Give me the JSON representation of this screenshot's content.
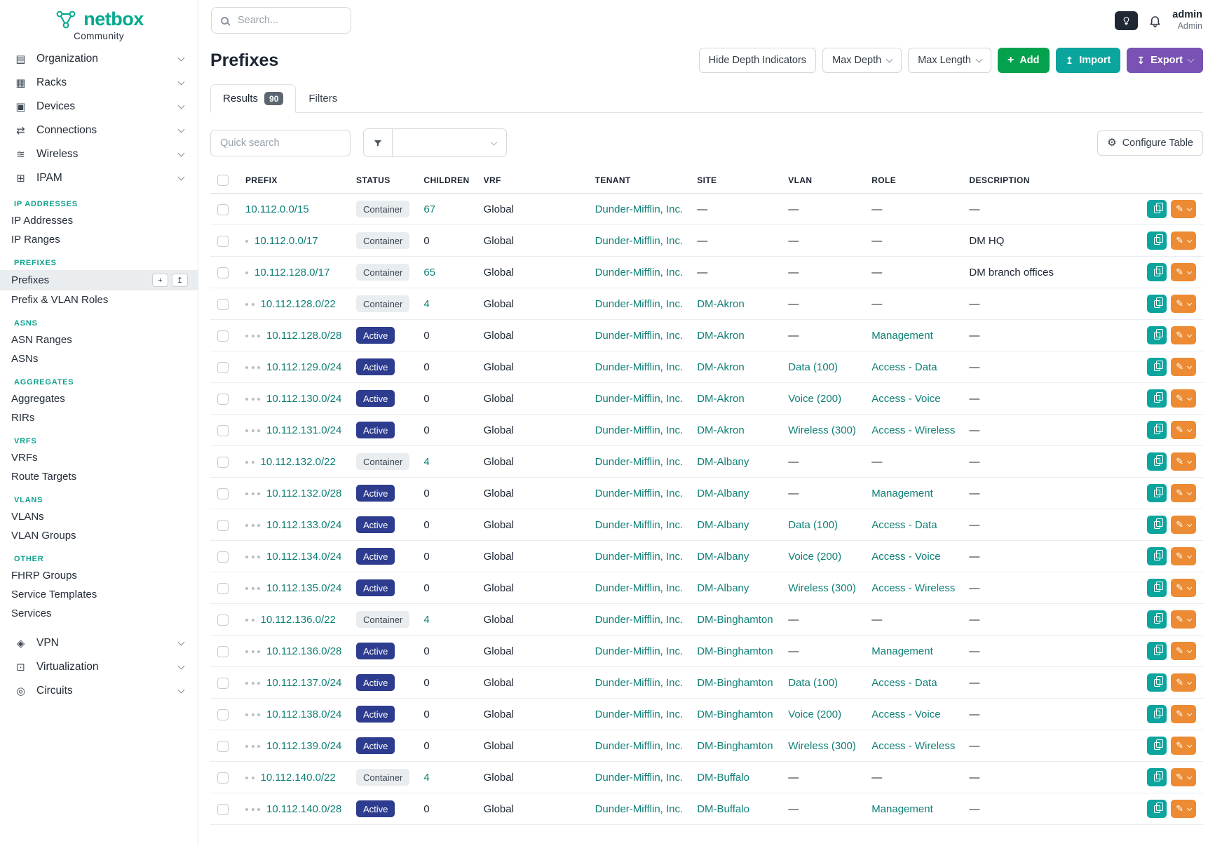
{
  "brand": {
    "name": "netbox",
    "subtitle": "Community"
  },
  "topbar": {
    "search_placeholder": "Search...",
    "username": "admin",
    "user_role": "Admin"
  },
  "sidebar": {
    "top_nav": [
      {
        "label": "Organization",
        "icon": "organization"
      },
      {
        "label": "Racks",
        "icon": "racks"
      },
      {
        "label": "Devices",
        "icon": "devices"
      },
      {
        "label": "Connections",
        "icon": "connections"
      },
      {
        "label": "Wireless",
        "icon": "wireless"
      },
      {
        "label": "IPAM",
        "icon": "ipam"
      }
    ],
    "sections": [
      {
        "header": "IP ADDRESSES",
        "items": [
          {
            "label": "IP Addresses"
          },
          {
            "label": "IP Ranges"
          }
        ]
      },
      {
        "header": "PREFIXES",
        "items": [
          {
            "label": "Prefixes",
            "active": true
          },
          {
            "label": "Prefix & VLAN Roles"
          }
        ]
      },
      {
        "header": "ASNS",
        "items": [
          {
            "label": "ASN Ranges"
          },
          {
            "label": "ASNs"
          }
        ]
      },
      {
        "header": "AGGREGATES",
        "items": [
          {
            "label": "Aggregates"
          },
          {
            "label": "RIRs"
          }
        ]
      },
      {
        "header": "VRFS",
        "items": [
          {
            "label": "VRFs"
          },
          {
            "label": "Route Targets"
          }
        ]
      },
      {
        "header": "VLANS",
        "items": [
          {
            "label": "VLANs"
          },
          {
            "label": "VLAN Groups"
          }
        ]
      },
      {
        "header": "OTHER",
        "items": [
          {
            "label": "FHRP Groups"
          },
          {
            "label": "Service Templates"
          },
          {
            "label": "Services"
          }
        ]
      }
    ],
    "bottom_nav": [
      {
        "label": "VPN",
        "icon": "vpn"
      },
      {
        "label": "Virtualization",
        "icon": "virtualization"
      },
      {
        "label": "Circuits",
        "icon": "circuits"
      }
    ],
    "icons": {
      "organization": "▤",
      "racks": "▦",
      "devices": "▣",
      "connections": "⇄",
      "wireless": "≋",
      "ipam": "⊞",
      "vpn": "◈",
      "virtualization": "⊡",
      "circuits": "◎"
    }
  },
  "page": {
    "title": "Prefixes",
    "hide_depth_label": "Hide Depth Indicators",
    "max_depth_label": "Max Depth",
    "max_length_label": "Max Length",
    "add_label": "Add",
    "import_label": "Import",
    "export_label": "Export",
    "tabs": [
      {
        "label": "Results",
        "badge": "90"
      },
      {
        "label": "Filters"
      }
    ],
    "quick_search_placeholder": "Quick search",
    "configure_table_label": "Configure Table"
  },
  "table": {
    "columns": [
      "PREFIX",
      "STATUS",
      "CHILDREN",
      "VRF",
      "TENANT",
      "SITE",
      "VLAN",
      "ROLE",
      "DESCRIPTION"
    ],
    "rows": [
      {
        "depth": 0,
        "prefix": "10.112.0.0/15",
        "status": "Container",
        "children": "67",
        "vrf": "Global",
        "tenant": "Dunder-Mifflin, Inc.",
        "site": "—",
        "vlan": "—",
        "role": "—",
        "description": "—"
      },
      {
        "depth": 1,
        "prefix": "10.112.0.0/17",
        "status": "Container",
        "children": "0",
        "vrf": "Global",
        "tenant": "Dunder-Mifflin, Inc.",
        "site": "—",
        "vlan": "—",
        "role": "—",
        "description": "DM HQ"
      },
      {
        "depth": 1,
        "prefix": "10.112.128.0/17",
        "status": "Container",
        "children": "65",
        "vrf": "Global",
        "tenant": "Dunder-Mifflin, Inc.",
        "site": "—",
        "vlan": "—",
        "role": "—",
        "description": "DM branch offices"
      },
      {
        "depth": 2,
        "prefix": "10.112.128.0/22",
        "status": "Container",
        "children": "4",
        "vrf": "Global",
        "tenant": "Dunder-Mifflin, Inc.",
        "site": "DM-Akron",
        "vlan": "—",
        "role": "—",
        "description": "—"
      },
      {
        "depth": 3,
        "prefix": "10.112.128.0/28",
        "status": "Active",
        "children": "0",
        "vrf": "Global",
        "tenant": "Dunder-Mifflin, Inc.",
        "site": "DM-Akron",
        "vlan": "—",
        "role": "Management",
        "description": "—"
      },
      {
        "depth": 3,
        "prefix": "10.112.129.0/24",
        "status": "Active",
        "children": "0",
        "vrf": "Global",
        "tenant": "Dunder-Mifflin, Inc.",
        "site": "DM-Akron",
        "vlan": "Data (100)",
        "role": "Access - Data",
        "description": "—"
      },
      {
        "depth": 3,
        "prefix": "10.112.130.0/24",
        "status": "Active",
        "children": "0",
        "vrf": "Global",
        "tenant": "Dunder-Mifflin, Inc.",
        "site": "DM-Akron",
        "vlan": "Voice (200)",
        "role": "Access - Voice",
        "description": "—"
      },
      {
        "depth": 3,
        "prefix": "10.112.131.0/24",
        "status": "Active",
        "children": "0",
        "vrf": "Global",
        "tenant": "Dunder-Mifflin, Inc.",
        "site": "DM-Akron",
        "vlan": "Wireless (300)",
        "role": "Access - Wireless",
        "description": "—"
      },
      {
        "depth": 2,
        "prefix": "10.112.132.0/22",
        "status": "Container",
        "children": "4",
        "vrf": "Global",
        "tenant": "Dunder-Mifflin, Inc.",
        "site": "DM-Albany",
        "vlan": "—",
        "role": "—",
        "description": "—"
      },
      {
        "depth": 3,
        "prefix": "10.112.132.0/28",
        "status": "Active",
        "children": "0",
        "vrf": "Global",
        "tenant": "Dunder-Mifflin, Inc.",
        "site": "DM-Albany",
        "vlan": "—",
        "role": "Management",
        "description": "—"
      },
      {
        "depth": 3,
        "prefix": "10.112.133.0/24",
        "status": "Active",
        "children": "0",
        "vrf": "Global",
        "tenant": "Dunder-Mifflin, Inc.",
        "site": "DM-Albany",
        "vlan": "Data (100)",
        "role": "Access - Data",
        "description": "—"
      },
      {
        "depth": 3,
        "prefix": "10.112.134.0/24",
        "status": "Active",
        "children": "0",
        "vrf": "Global",
        "tenant": "Dunder-Mifflin, Inc.",
        "site": "DM-Albany",
        "vlan": "Voice (200)",
        "role": "Access - Voice",
        "description": "—"
      },
      {
        "depth": 3,
        "prefix": "10.112.135.0/24",
        "status": "Active",
        "children": "0",
        "vrf": "Global",
        "tenant": "Dunder-Mifflin, Inc.",
        "site": "DM-Albany",
        "vlan": "Wireless (300)",
        "role": "Access - Wireless",
        "description": "—"
      },
      {
        "depth": 2,
        "prefix": "10.112.136.0/22",
        "status": "Container",
        "children": "4",
        "vrf": "Global",
        "tenant": "Dunder-Mifflin, Inc.",
        "site": "DM-Binghamton",
        "vlan": "—",
        "role": "—",
        "description": "—"
      },
      {
        "depth": 3,
        "prefix": "10.112.136.0/28",
        "status": "Active",
        "children": "0",
        "vrf": "Global",
        "tenant": "Dunder-Mifflin, Inc.",
        "site": "DM-Binghamton",
        "vlan": "—",
        "role": "Management",
        "description": "—"
      },
      {
        "depth": 3,
        "prefix": "10.112.137.0/24",
        "status": "Active",
        "children": "0",
        "vrf": "Global",
        "tenant": "Dunder-Mifflin, Inc.",
        "site": "DM-Binghamton",
        "vlan": "Data (100)",
        "role": "Access - Data",
        "description": "—"
      },
      {
        "depth": 3,
        "prefix": "10.112.138.0/24",
        "status": "Active",
        "children": "0",
        "vrf": "Global",
        "tenant": "Dunder-Mifflin, Inc.",
        "site": "DM-Binghamton",
        "vlan": "Voice (200)",
        "role": "Access - Voice",
        "description": "—"
      },
      {
        "depth": 3,
        "prefix": "10.112.139.0/24",
        "status": "Active",
        "children": "0",
        "vrf": "Global",
        "tenant": "Dunder-Mifflin, Inc.",
        "site": "DM-Binghamton",
        "vlan": "Wireless (300)",
        "role": "Access - Wireless",
        "description": "—"
      },
      {
        "depth": 2,
        "prefix": "10.112.140.0/22",
        "status": "Container",
        "children": "4",
        "vrf": "Global",
        "tenant": "Dunder-Mifflin, Inc.",
        "site": "DM-Buffalo",
        "vlan": "—",
        "role": "—",
        "description": "—"
      },
      {
        "depth": 3,
        "prefix": "10.112.140.0/28",
        "status": "Active",
        "children": "0",
        "vrf": "Global",
        "tenant": "Dunder-Mifflin, Inc.",
        "site": "DM-Buffalo",
        "vlan": "—",
        "role": "Management",
        "description": "—"
      }
    ]
  },
  "colors": {
    "brand_teal": "#00a88d",
    "link_teal": "#0e7f76",
    "status_active_bg": "#2d3c8e",
    "status_container_bg": "#e9edf0",
    "add_green": "#04a24c",
    "import_teal": "#0ba59d",
    "export_purple": "#7952b3",
    "edit_orange": "#ec8b33"
  }
}
